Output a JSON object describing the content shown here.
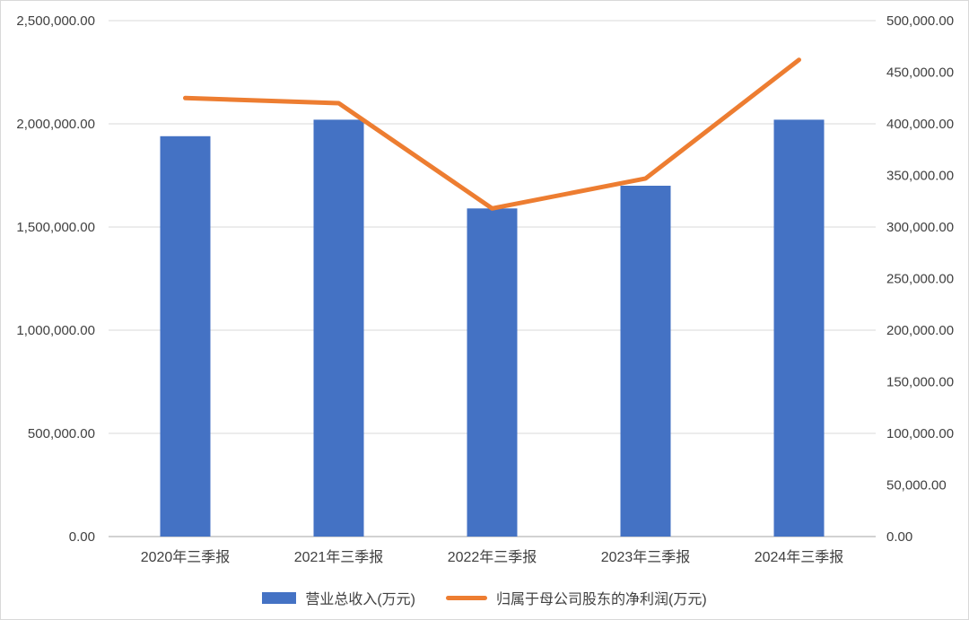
{
  "chart_data": {
    "type": "bar",
    "subtype": "bar-line-combo-dual-axis",
    "categories": [
      "2020年三季报",
      "2021年三季报",
      "2022年三季报",
      "2023年三季报",
      "2024年三季报"
    ],
    "series": [
      {
        "name": "营业总收入(万元)",
        "type": "bar",
        "axis": "left",
        "color": "#4472C4",
        "values": [
          1940000,
          2020000,
          1590000,
          1700000,
          2020000
        ]
      },
      {
        "name": "归属于母公司股东的净利润(万元)",
        "type": "line",
        "axis": "right",
        "color": "#ED7D31",
        "values": [
          425000,
          420000,
          318000,
          347000,
          462000
        ]
      }
    ],
    "left_axis": {
      "min": 0,
      "max": 2500000,
      "step": 500000,
      "tick_labels": [
        "0.00",
        "500,000.00",
        "1,000,000.00",
        "1,500,000.00",
        "2,000,000.00",
        "2,500,000.00"
      ]
    },
    "right_axis": {
      "min": 0,
      "max": 500000,
      "step": 50000,
      "tick_labels": [
        "0.00",
        "50,000.00",
        "100,000.00",
        "150,000.00",
        "200,000.00",
        "250,000.00",
        "300,000.00",
        "350,000.00",
        "400,000.00",
        "450,000.00",
        "500,000.00"
      ]
    },
    "grid": true,
    "gridline_color": "#d9d9d9",
    "axisline_color": "#a6a6a6",
    "legend_position": "bottom",
    "title": ""
  }
}
